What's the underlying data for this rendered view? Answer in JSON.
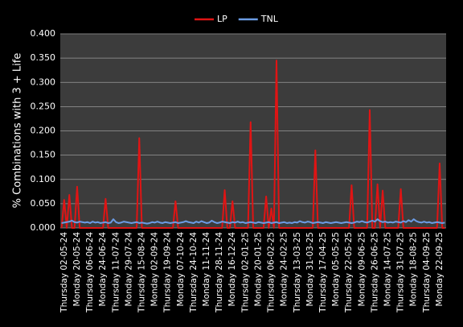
{
  "chart_data": {
    "type": "line",
    "y_label": "% Combinations with 3 + Life",
    "legend": "top",
    "grid": true,
    "ylim": [
      0,
      0.4
    ],
    "yticks": [
      {
        "value": 0,
        "label": "0.000"
      },
      {
        "value": 0.05,
        "label": "0.050"
      },
      {
        "value": 0.1,
        "label": "0.100"
      },
      {
        "value": 0.15,
        "label": "0.150"
      },
      {
        "value": 0.2,
        "label": "0.200"
      },
      {
        "value": 0.25,
        "label": "0.250"
      },
      {
        "value": 0.3,
        "label": "0.300"
      },
      {
        "value": 0.35,
        "label": "0.350"
      },
      {
        "value": 0.4,
        "label": "0.400"
      }
    ],
    "categories": [
      null,
      "Thursday  02-05-24",
      null,
      null,
      null,
      null,
      "Monday  20-05-24",
      null,
      null,
      null,
      null,
      "Thursday  06-06-24",
      null,
      null,
      null,
      null,
      "Monday  24-06-24",
      null,
      null,
      null,
      null,
      "Thursday  11-07-24",
      null,
      null,
      null,
      null,
      "Monday  29-07-24",
      null,
      null,
      null,
      null,
      "Thursday  15-08-24",
      null,
      null,
      null,
      null,
      "Monday  02-09-24",
      null,
      null,
      null,
      null,
      "Thursday  19-09-24",
      null,
      null,
      null,
      null,
      "Monday  07-10-24",
      null,
      null,
      null,
      null,
      "Thursday  24-10-24",
      null,
      null,
      null,
      null,
      "Monday  11-11-24",
      null,
      null,
      null,
      null,
      "Thursday  28-11-24",
      null,
      null,
      null,
      null,
      "Monday  16-12-24",
      null,
      null,
      null,
      null,
      "Thursday  02-01-25",
      null,
      null,
      null,
      null,
      "Monday  20-01-25",
      null,
      null,
      null,
      null,
      "Thursday  06-02-25",
      null,
      null,
      null,
      null,
      "Monday  24-02-25",
      null,
      null,
      null,
      null,
      "Thursday  13-03-25",
      null,
      null,
      null,
      null,
      "Monday  31-03-25",
      null,
      null,
      null,
      null,
      "Thursday  17-04-25",
      null,
      null,
      null,
      null,
      "Monday  05-05-25",
      null,
      null,
      null,
      null,
      "Thursday  22-05-25",
      null,
      null,
      null,
      null,
      "Monday  09-06-25",
      null,
      null,
      null,
      null,
      "Thursday  26-06-25",
      null,
      null,
      null,
      null,
      "Monday  14-07-25",
      null,
      null,
      null,
      null,
      "Thursday  31-07-25",
      null,
      null,
      null,
      null,
      "Monday  18-08-25",
      null,
      null,
      null,
      null,
      "Thursday  04-09-25",
      null,
      null,
      null,
      null,
      "Monday  22-09-25",
      null,
      null
    ],
    "series": [
      {
        "name": "LP",
        "color": "#e01414",
        "values": [
          0,
          0.058,
          0,
          0.068,
          0,
          0,
          0.085,
          0,
          0,
          0,
          0,
          0,
          0,
          0,
          0,
          0,
          0,
          0.06,
          0,
          0,
          0,
          0,
          0,
          0,
          0,
          0,
          0,
          0,
          0,
          0,
          0.185,
          0,
          0,
          0,
          0,
          0,
          0,
          0,
          0,
          0,
          0,
          0,
          0,
          0,
          0.055,
          0,
          0,
          0,
          0,
          0,
          0,
          0,
          0,
          0,
          0,
          0,
          0,
          0,
          0,
          0,
          0,
          0,
          0,
          0.078,
          0,
          0,
          0.055,
          0,
          0,
          0,
          0,
          0,
          0,
          0.218,
          0,
          0,
          0,
          0,
          0,
          0.065,
          0,
          0.04,
          0,
          0.345,
          0,
          0,
          0,
          0,
          0,
          0,
          0,
          0,
          0,
          0,
          0,
          0,
          0,
          0,
          0.16,
          0,
          0,
          0,
          0,
          0,
          0,
          0,
          0,
          0,
          0,
          0,
          0,
          0,
          0.088,
          0,
          0,
          0,
          0,
          0,
          0,
          0.243,
          0,
          0,
          0.09,
          0,
          0.077,
          0,
          0,
          0,
          0,
          0,
          0,
          0.08,
          0,
          0,
          0,
          0,
          0,
          0,
          0,
          0,
          0,
          0,
          0,
          0,
          0,
          0,
          0.133,
          0,
          0
        ]
      },
      {
        "name": "TNL",
        "color": "#6b9be3",
        "values": [
          0.01,
          0.011,
          0.012,
          0.013,
          0.015,
          0.012,
          0.011,
          0.013,
          0.012,
          0.011,
          0.012,
          0.01,
          0.013,
          0.011,
          0.012,
          0.01,
          0.011,
          0.012,
          0.01,
          0.011,
          0.018,
          0.012,
          0.01,
          0.011,
          0.013,
          0.012,
          0.011,
          0.01,
          0.011,
          0.012,
          0.01,
          0.011,
          0.01,
          0.009,
          0.01,
          0.012,
          0.011,
          0.013,
          0.011,
          0.01,
          0.012,
          0.011,
          0.01,
          0.011,
          0.012,
          0.01,
          0.011,
          0.012,
          0.014,
          0.012,
          0.011,
          0.01,
          0.013,
          0.011,
          0.014,
          0.012,
          0.01,
          0.011,
          0.015,
          0.012,
          0.01,
          0.011,
          0.013,
          0.012,
          0.011,
          0.01,
          0.012,
          0.011,
          0.013,
          0.011,
          0.012,
          0.01,
          0.011,
          0.012,
          0.011,
          0.01,
          0.012,
          0.011,
          0.01,
          0.011,
          0.012,
          0.01,
          0.011,
          0.012,
          0.01,
          0.011,
          0.012,
          0.01,
          0.011,
          0.01,
          0.012,
          0.011,
          0.014,
          0.012,
          0.011,
          0.013,
          0.012,
          0.01,
          0.011,
          0.012,
          0.011,
          0.01,
          0.012,
          0.011,
          0.01,
          0.011,
          0.012,
          0.011,
          0.01,
          0.011,
          0.012,
          0.011,
          0.01,
          0.011,
          0.013,
          0.012,
          0.014,
          0.012,
          0.011,
          0.013,
          0.015,
          0.013,
          0.018,
          0.014,
          0.012,
          0.013,
          0.011,
          0.012,
          0.011,
          0.013,
          0.012,
          0.011,
          0.014,
          0.012,
          0.016,
          0.013,
          0.018,
          0.014,
          0.012,
          0.011,
          0.013,
          0.011,
          0.012,
          0.01,
          0.011,
          0.012,
          0.011,
          0.01,
          0.011
        ]
      }
    ]
  }
}
